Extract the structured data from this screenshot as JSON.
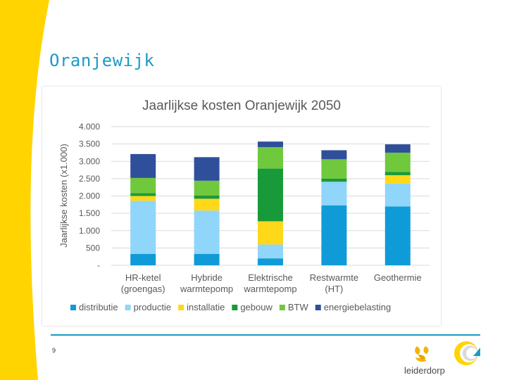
{
  "slide": {
    "title": "Oranjewijk",
    "page_number": "9",
    "logo_text": "leiderdorp"
  },
  "colors": {
    "accent": "#1a9bc7",
    "yellow": "#ffd400",
    "distributie": "#0f9bd7",
    "productie": "#90d5fa",
    "installatie": "#ffd81a",
    "gebouw": "#189a3b",
    "BTW": "#70c83c",
    "energiebelasting": "#2f4f9a"
  },
  "chart_data": {
    "type": "bar",
    "stacked": true,
    "title": "Jaarlijkse kosten Oranjewijk 2050",
    "ylabel": "Jaarlijkse kosten (x1.000)",
    "xlabel": "",
    "ylim": [
      0,
      4000
    ],
    "yticks": [
      0,
      500,
      1000,
      1500,
      2000,
      2500,
      3000,
      3500,
      4000
    ],
    "ytick_labels": [
      "-",
      "500",
      "1.000",
      "1.500",
      "2.000",
      "2.500",
      "3.000",
      "3.500",
      "4.000"
    ],
    "grid": true,
    "legend_position": "bottom",
    "categories": [
      [
        "HR-ketel",
        "(groengas)"
      ],
      [
        "Hybride",
        "warmtepomp"
      ],
      [
        "Elektrische",
        "warmtepomp"
      ],
      [
        "Restwarmte",
        "(HT)"
      ],
      [
        "Geothermie"
      ]
    ],
    "series": [
      {
        "name": "distributie",
        "color": "#0f9bd7",
        "values": [
          330,
          330,
          200,
          1730,
          1700
        ]
      },
      {
        "name": "productie",
        "color": "#90d5fa",
        "values": [
          1530,
          1250,
          400,
          680,
          660
        ]
      },
      {
        "name": "installatie",
        "color": "#ffd81a",
        "values": [
          140,
          340,
          670,
          0,
          240
        ]
      },
      {
        "name": "gebouw",
        "color": "#189a3b",
        "values": [
          80,
          90,
          1520,
          90,
          90
        ]
      },
      {
        "name": "BTW",
        "color": "#70c83c",
        "values": [
          440,
          430,
          620,
          560,
          560
        ]
      },
      {
        "name": "energiebelasting",
        "color": "#2f4f9a",
        "values": [
          690,
          680,
          160,
          260,
          240
        ]
      }
    ]
  }
}
